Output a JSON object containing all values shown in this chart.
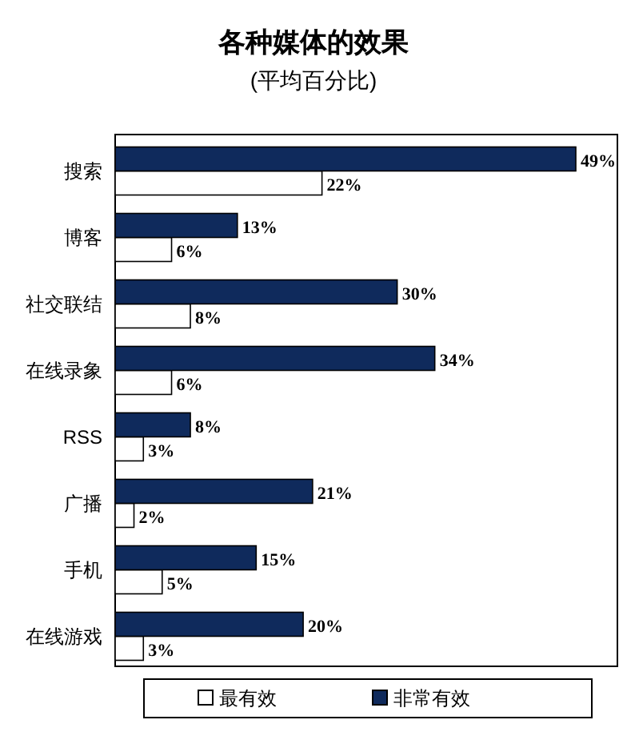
{
  "chart_data": {
    "type": "bar",
    "orientation": "horizontal",
    "title": "各种媒体的效果",
    "subtitle": "(平均百分比)",
    "categories": [
      "搜索",
      "博客",
      "社交联结",
      "在线录象",
      "RSS",
      "广播",
      "手机",
      "在线游戏"
    ],
    "series": [
      {
        "name": "最有效",
        "color": "#ffffff",
        "values": [
          22,
          6,
          8,
          6,
          3,
          2,
          5,
          3
        ],
        "value_labels": [
          "22%",
          "6%",
          "8%",
          "6%",
          "3%",
          "2%",
          "5%",
          "3%"
        ]
      },
      {
        "name": "非常有效",
        "color": "#0f2a5c",
        "values": [
          49,
          13,
          30,
          34,
          8,
          21,
          15,
          20
        ],
        "value_labels": [
          "49%",
          "13%",
          "30%",
          "34%",
          "8%",
          "21%",
          "15%",
          "20%"
        ]
      }
    ],
    "legend": "bottom"
  }
}
